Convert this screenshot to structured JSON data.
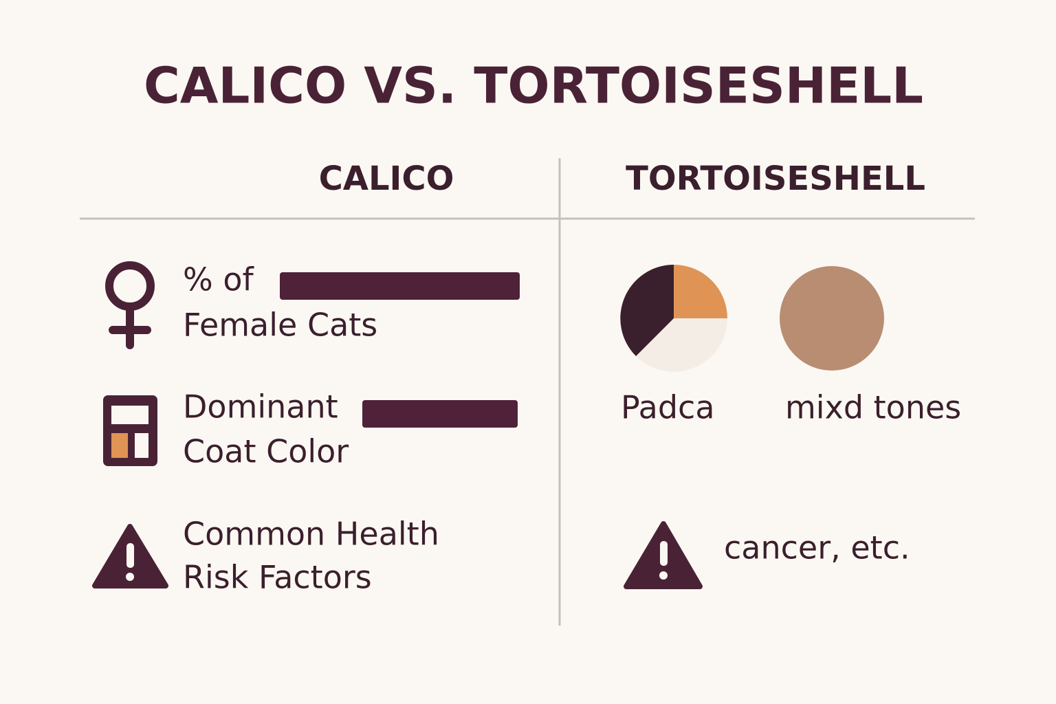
{
  "title": "CALICO VS. TORTOISESHELL",
  "columns": [
    "CALICO",
    "TORTOISESHELL"
  ],
  "calico_rows": [
    [
      "% of",
      "Female Cats"
    ],
    [
      "Dominant",
      "Coat Color"
    ],
    [
      "Common Health",
      "Risk Factors"
    ]
  ],
  "tortoiseshell": {
    "color_labels": [
      "Padca",
      "mixd tones"
    ],
    "health": "cancer, etc."
  }
}
